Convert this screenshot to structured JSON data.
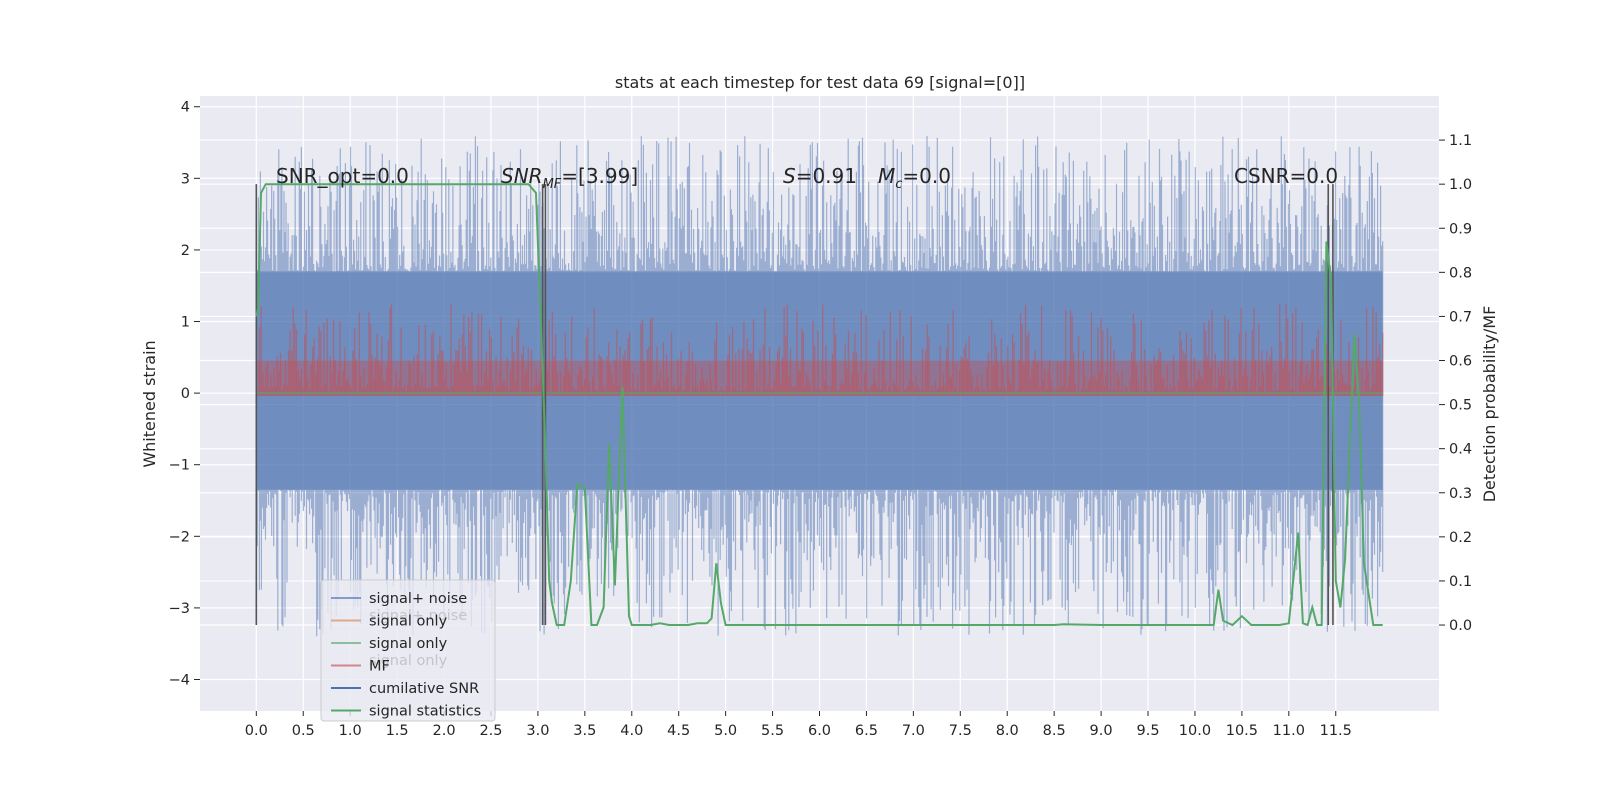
{
  "chart_data": {
    "type": "line",
    "title": "stats at each timestep for test data 69 [signal=[0]]",
    "xlabel": "",
    "ylabel": "Whitened strain",
    "ylabel_right": "Detection probability/MF",
    "xlim": [
      -0.6,
      12.6
    ],
    "ylim": [
      -4.44,
      4.15
    ],
    "ylim_right": [
      -0.195,
      1.2
    ],
    "x_ticks": [
      "0.0",
      "0.5",
      "1.0",
      "1.5",
      "2.0",
      "2.5",
      "3.0",
      "3.5",
      "4.0",
      "4.5",
      "5.0",
      "5.5",
      "6.0",
      "6.5",
      "7.0",
      "7.5",
      "8.0",
      "8.5",
      "9.0",
      "9.5",
      "10.0",
      "10.5",
      "11.0",
      "11.5"
    ],
    "y_ticks": [
      "−4",
      "−3",
      "−2",
      "−1",
      "0",
      "1",
      "2",
      "3",
      "4"
    ],
    "y_ticks_right": [
      "0.0",
      "0.1",
      "0.2",
      "0.3",
      "0.4",
      "0.5",
      "0.6",
      "0.7",
      "0.8",
      "0.9",
      "1.0",
      "1.1"
    ],
    "grid": true,
    "legend_position": "lower-left",
    "annotations": {
      "snr_opt": "SNR_opt=0.0",
      "snr_mf_name": "SNR",
      "snr_mf_sub": "MF",
      "snr_mf_value": "=[3.99]",
      "s_name": "S",
      "s_value": "=0.91",
      "mc_name": "M",
      "mc_sub": "c",
      "mc_value": "=0.0",
      "csnr": "CSNR=0.0"
    },
    "legend": [
      {
        "label": "signal+ noise",
        "color": "#4c72b0"
      },
      {
        "label": "signal only",
        "color": "#dd8452"
      },
      {
        "label": "signal only",
        "color": "#55a868"
      },
      {
        "label": "MF",
        "color": "#c44e52"
      },
      {
        "label": "cumilative SNR",
        "color": "#4c72b0"
      },
      {
        "label": "signal statistics",
        "color": "#55a868"
      }
    ],
    "legend_ghost_labels": [
      "signal+ noise",
      "signal only"
    ],
    "series": [
      {
        "name": "signal+ noise",
        "color": "#4c72b0",
        "x_range": [
          0.0,
          12.0
        ],
        "band": [
          -1.35,
          1.7
        ],
        "typical_peak_range": [
          -3.3,
          3.8
        ]
      },
      {
        "name": "MF",
        "color": "#c44e52",
        "x_range": [
          0.0,
          12.0
        ],
        "band_right": [
          0.53,
          0.73
        ],
        "base_right": 0.52
      },
      {
        "name": "signal only",
        "color": "#55a868",
        "x_range": [
          0.0,
          12.0
        ],
        "values": 0.0
      },
      {
        "name": "signal statistics",
        "color": "#55a868",
        "x": [
          0.0,
          0.02,
          0.05,
          0.1,
          0.3,
          0.6,
          1.0,
          1.5,
          2.0,
          2.5,
          2.9,
          2.98,
          3.03,
          3.08,
          3.12,
          3.15,
          3.2,
          3.28,
          3.35,
          3.42,
          3.5,
          3.57,
          3.63,
          3.7,
          3.76,
          3.82,
          3.9,
          3.97,
          4.0,
          4.1,
          4.2,
          4.3,
          4.4,
          4.5,
          4.6,
          4.7,
          4.8,
          4.85,
          4.9,
          4.95,
          5.0,
          5.1,
          5.5,
          6.0,
          7.0,
          8.0,
          8.5,
          8.6,
          9.0,
          9.5,
          10.0,
          10.2,
          10.25,
          10.3,
          10.4,
          10.5,
          10.6,
          10.7,
          10.9,
          11.0,
          11.1,
          11.15,
          11.2,
          11.25,
          11.3,
          11.35,
          11.4,
          11.45,
          11.5,
          11.55,
          11.6,
          11.7,
          11.75,
          11.8,
          11.9,
          11.95,
          12.0
        ],
        "values": [
          0.7,
          0.72,
          0.98,
          1.0,
          1.0,
          1.0,
          1.0,
          1.0,
          1.0,
          1.0,
          1.0,
          0.98,
          0.7,
          0.4,
          0.1,
          0.05,
          0.0,
          0.0,
          0.1,
          0.32,
          0.31,
          0.0,
          0.0,
          0.04,
          0.41,
          0.09,
          0.54,
          0.02,
          0.0,
          0.0,
          0.0,
          0.004,
          0.0,
          0.0,
          0.0,
          0.004,
          0.004,
          0.015,
          0.14,
          0.05,
          0.0,
          0.0,
          0.0,
          0.0,
          0.0,
          0.0,
          0.0,
          0.002,
          0.0,
          0.0,
          0.0,
          0.0,
          0.08,
          0.01,
          0.0,
          0.02,
          0.0,
          0.0,
          0.0,
          0.004,
          0.21,
          0.004,
          0.0,
          0.04,
          0.0,
          0.0,
          0.87,
          0.78,
          0.1,
          0.04,
          0.15,
          0.66,
          0.5,
          0.14,
          0.0,
          0.0,
          0.0
        ]
      }
    ],
    "vertical_markers_x": [
      0.0,
      3.05,
      3.08,
      11.42,
      11.47
    ]
  }
}
